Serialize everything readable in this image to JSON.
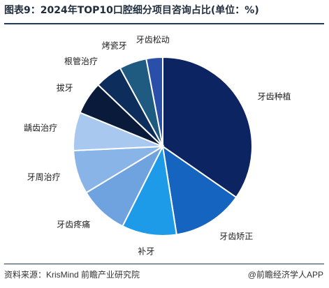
{
  "title": "图表9：2024年TOP10口腔细分项目咨询占比(单位：%)",
  "source": "资料来源：KrisMind 前瞻产业研究院",
  "credit": "@前瞻经济学人APP",
  "chart_data": {
    "type": "pie",
    "title": "图表9：2024年TOP10口腔细分项目咨询占比(单位：%)",
    "start": "12 o'clock",
    "direction": "clockwise",
    "legend": "none (labels outside slices)",
    "categories": [
      "牙齿种植",
      "牙齿矫正",
      "补牙",
      "牙齿疼痛",
      "牙周治疗",
      "龋齿治疗",
      "拔牙",
      "根管治疗",
      "烤瓷牙",
      "牙齿松动"
    ],
    "values": [
      35,
      13,
      10,
      9,
      8,
      7,
      6,
      5,
      5,
      3
    ],
    "colors": [
      "#0c2461",
      "#1565c0",
      "#1e9be8",
      "#6fa3e0",
      "#88b4e8",
      "#a9c8f0",
      "#0a1a3a",
      "#0d2d5c",
      "#1f5b80",
      "#2a4fa8"
    ]
  }
}
